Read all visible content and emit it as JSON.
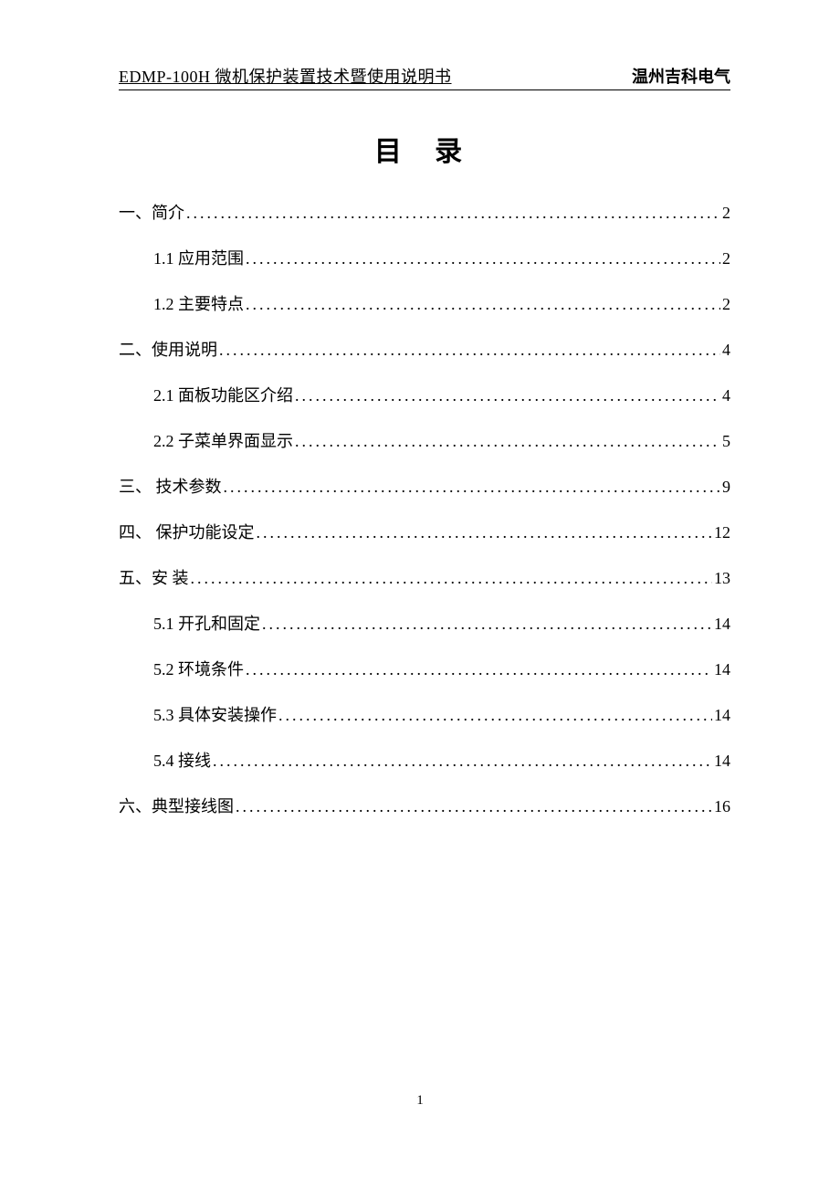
{
  "header": {
    "left": "EDMP-100H 微机保护装置技术暨使用说明书",
    "right": "温州吉科电气"
  },
  "title": "目 录",
  "toc": {
    "entries": [
      {
        "level": 1,
        "label": "一、简介",
        "page": "2"
      },
      {
        "level": 2,
        "label": "1.1 应用范围",
        "page": "2"
      },
      {
        "level": 2,
        "label": "1.2 主要特点",
        "page": "2"
      },
      {
        "level": 1,
        "label": "二、使用说明",
        "page": "4"
      },
      {
        "level": 2,
        "label": "2.1 面板功能区介绍",
        "page": "4"
      },
      {
        "level": 2,
        "label": "2.2 子菜单界面显示",
        "page": "5"
      },
      {
        "level": 1,
        "label": "三、 技术参数",
        "page": "9"
      },
      {
        "level": 1,
        "label": "四、 保护功能设定",
        "page": "12"
      },
      {
        "level": 1,
        "label": "五、安 装",
        "page": "13"
      },
      {
        "level": 2,
        "label": "5.1 开孔和固定",
        "page": "14"
      },
      {
        "level": 2,
        "label": "5.2 环境条件",
        "page": "14"
      },
      {
        "level": 2,
        "label": "5.3 具体安装操作",
        "page": "14"
      },
      {
        "level": 2,
        "label": "5.4 接线",
        "page": "14"
      },
      {
        "level": 1,
        "label": "六、典型接线图",
        "page": "16"
      }
    ]
  },
  "page_number": "1",
  "colors": {
    "background": "#ffffff",
    "text": "#000000"
  }
}
